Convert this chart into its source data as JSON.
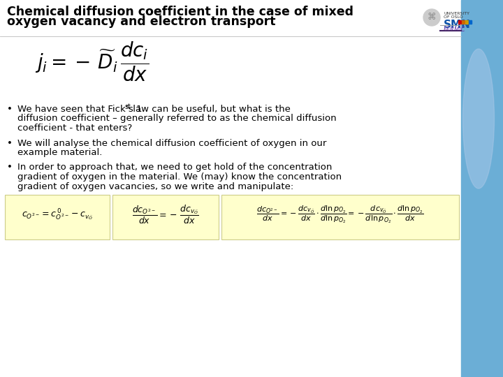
{
  "title_line1": "Chemical diffusion coefficient in the case of mixed",
  "title_line2": "oxygen vacancy and electron transport",
  "background_color": "#ffffff",
  "right_panel_color": "#6baed6",
  "bullet1_p1": "We have seen that Fick’s 1",
  "bullet1_sup": "st",
  "bullet1_p2": " law can be useful, but what is the",
  "bullet1_line2": "diffusion coefficient – generally referred to as the chemical diffusion",
  "bullet1_line3": "coefficient - that enters?",
  "bullet2_line1": "We will analyse the chemical diffusion coefficient of oxygen in our",
  "bullet2_line2": "example material.",
  "bullet3_line1": "In order to approach that, we need to get hold of the concentration",
  "bullet3_line2": "gradient of oxygen in the material. We (may) know the concentration",
  "bullet3_line3": "gradient of oxygen vacancies, so we write and manipulate:",
  "formula_bg": "#ffffcc",
  "body_fontsize": 9.5,
  "title_fontsize": 12.5
}
